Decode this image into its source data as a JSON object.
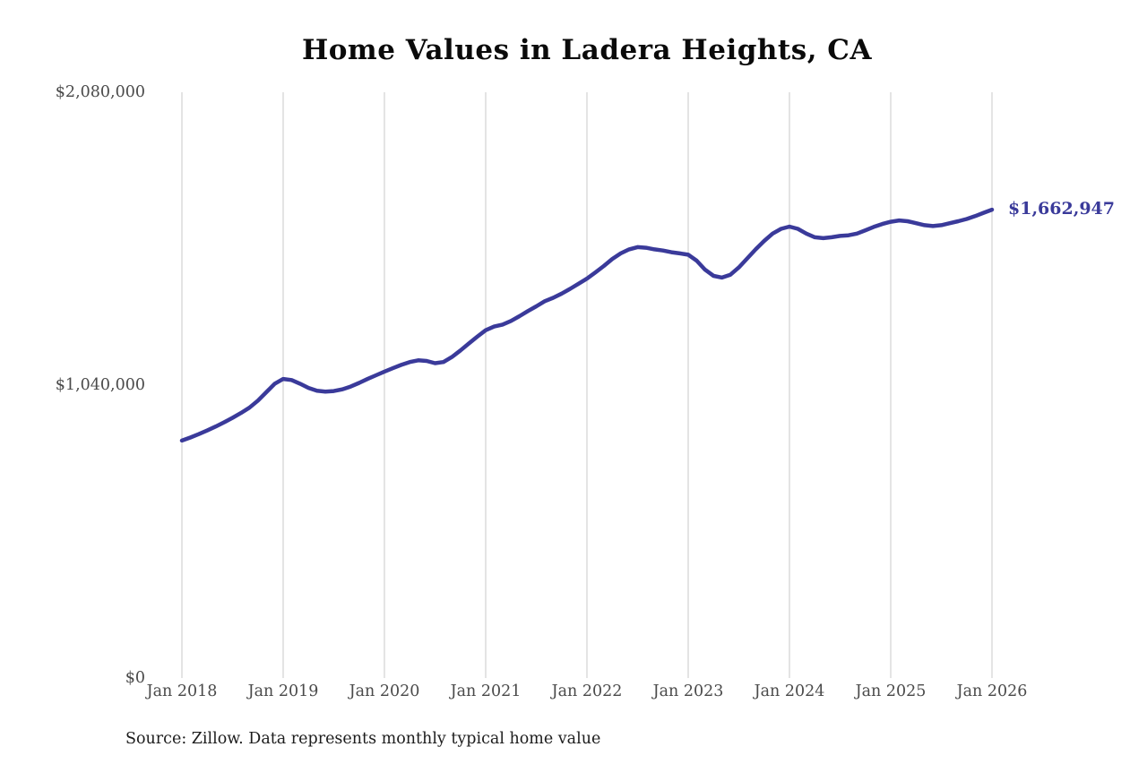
{
  "chart_data": {
    "type": "line",
    "title": "Home Values in Ladera Heights, CA",
    "xlabel": "",
    "ylabel": "",
    "x_start": "2018-01",
    "x_end": "2026-01",
    "interval": "monthly",
    "values": [
      843000,
      854000,
      866000,
      879000,
      893000,
      908000,
      924000,
      941000,
      960000,
      985000,
      1015000,
      1045000,
      1062000,
      1058000,
      1045000,
      1030000,
      1020000,
      1017000,
      1019000,
      1025000,
      1035000,
      1048000,
      1062000,
      1075000,
      1088000,
      1100000,
      1112000,
      1122000,
      1128000,
      1126000,
      1118000,
      1122000,
      1140000,
      1163000,
      1188000,
      1212000,
      1235000,
      1248000,
      1255000,
      1268000,
      1285000,
      1303000,
      1320000,
      1338000,
      1350000,
      1365000,
      1382000,
      1400000,
      1418000,
      1440000,
      1463000,
      1488000,
      1508000,
      1522000,
      1530000,
      1528000,
      1522000,
      1518000,
      1512000,
      1508000,
      1503000,
      1482000,
      1450000,
      1428000,
      1422000,
      1432000,
      1458000,
      1490000,
      1522000,
      1552000,
      1578000,
      1595000,
      1603000,
      1595000,
      1578000,
      1565000,
      1562000,
      1565000,
      1570000,
      1572000,
      1578000,
      1590000,
      1602000,
      1612000,
      1620000,
      1625000,
      1622000,
      1615000,
      1608000,
      1605000,
      1608000,
      1615000,
      1622000,
      1630000,
      1640000,
      1652000,
      1662947
    ],
    "x_tick_labels": [
      "Jan 2018",
      "Jan 2019",
      "Jan 2020",
      "Jan 2021",
      "Jan 2022",
      "Jan 2023",
      "Jan 2024",
      "Jan 2025",
      "Jan 2026"
    ],
    "y_ticks": [
      {
        "value": 0,
        "label": "$0"
      },
      {
        "value": 1040000,
        "label": "$1,040,000"
      },
      {
        "value": 2080000,
        "label": "$2,080,000"
      }
    ],
    "ylim": [
      0,
      2080000
    ],
    "grid": "vertical-only",
    "legend": "none",
    "line_color": "#3a3a9a",
    "gridline_color": "#c9c9c9",
    "annotation": {
      "label": "$1,662,947",
      "value": 1662947
    },
    "source": "Source: Zillow. Data represents monthly typical home value"
  }
}
